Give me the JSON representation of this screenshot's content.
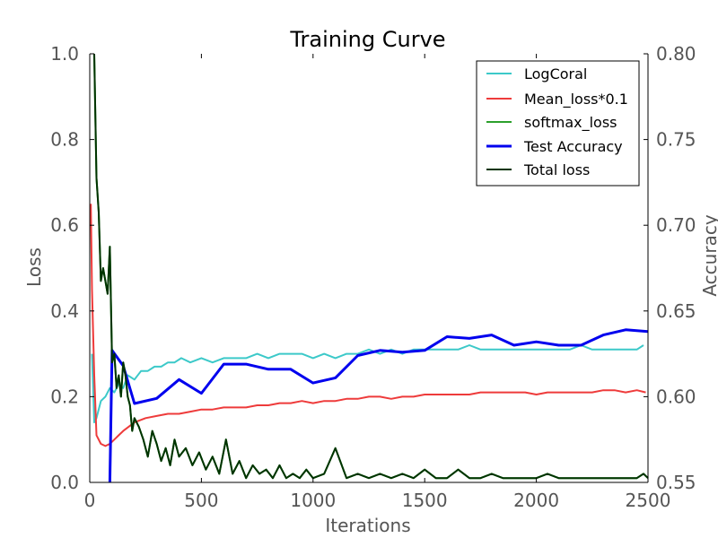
{
  "chart_data": {
    "type": "line",
    "title": "Training Curve",
    "xlabel": "Iterations",
    "ylabel": "Loss",
    "y2label": "Accuracy",
    "xlim": [
      0,
      2500
    ],
    "ylim": [
      0.0,
      1.0
    ],
    "y2lim": [
      0.55,
      0.8
    ],
    "xticks": [
      "0",
      "500",
      "1000",
      "1500",
      "2000",
      "2500"
    ],
    "yticks": [
      "0.0",
      "0.2",
      "0.4",
      "0.6",
      "0.8",
      "1.0"
    ],
    "y2ticks": [
      "0.55",
      "0.60",
      "0.65",
      "0.70",
      "0.75",
      "0.80"
    ],
    "grid": false,
    "legend_position": "top-right",
    "series": [
      {
        "name": "LogCoral",
        "axis": "left",
        "color": "#3cc9c9",
        "width": 2,
        "x": [
          10,
          20,
          30,
          50,
          70,
          90,
          110,
          130,
          150,
          170,
          200,
          230,
          260,
          290,
          320,
          350,
          380,
          410,
          450,
          500,
          550,
          600,
          650,
          700,
          750,
          800,
          850,
          900,
          950,
          1000,
          1050,
          1100,
          1150,
          1200,
          1250,
          1300,
          1350,
          1400,
          1450,
          1500,
          1550,
          1600,
          1650,
          1700,
          1750,
          1800,
          1850,
          1900,
          1950,
          2000,
          2050,
          2100,
          2150,
          2200,
          2250,
          2300,
          2350,
          2400,
          2450,
          2480
        ],
        "values": [
          0.3,
          0.14,
          0.15,
          0.19,
          0.2,
          0.22,
          0.21,
          0.23,
          0.22,
          0.25,
          0.24,
          0.26,
          0.26,
          0.27,
          0.27,
          0.28,
          0.28,
          0.29,
          0.28,
          0.29,
          0.28,
          0.29,
          0.29,
          0.29,
          0.3,
          0.29,
          0.3,
          0.3,
          0.3,
          0.29,
          0.3,
          0.29,
          0.3,
          0.3,
          0.31,
          0.3,
          0.31,
          0.3,
          0.31,
          0.31,
          0.31,
          0.31,
          0.31,
          0.32,
          0.31,
          0.31,
          0.31,
          0.31,
          0.31,
          0.31,
          0.31,
          0.31,
          0.31,
          0.32,
          0.31,
          0.31,
          0.31,
          0.31,
          0.31,
          0.32
        ]
      },
      {
        "name": "Mean_loss*0.1",
        "axis": "left",
        "color": "#ee3b3b",
        "width": 2,
        "x": [
          5,
          10,
          20,
          30,
          50,
          70,
          90,
          110,
          130,
          150,
          200,
          250,
          300,
          350,
          400,
          450,
          500,
          550,
          600,
          650,
          700,
          750,
          800,
          850,
          900,
          950,
          1000,
          1050,
          1100,
          1150,
          1200,
          1250,
          1300,
          1350,
          1400,
          1450,
          1500,
          1550,
          1600,
          1650,
          1700,
          1750,
          1800,
          1850,
          1900,
          1950,
          2000,
          2050,
          2100,
          2150,
          2200,
          2250,
          2300,
          2350,
          2400,
          2450,
          2490
        ],
        "values": [
          0.65,
          0.45,
          0.25,
          0.11,
          0.09,
          0.085,
          0.09,
          0.1,
          0.11,
          0.12,
          0.14,
          0.15,
          0.155,
          0.16,
          0.16,
          0.165,
          0.17,
          0.17,
          0.175,
          0.175,
          0.175,
          0.18,
          0.18,
          0.185,
          0.185,
          0.19,
          0.185,
          0.19,
          0.19,
          0.195,
          0.195,
          0.2,
          0.2,
          0.195,
          0.2,
          0.2,
          0.205,
          0.205,
          0.205,
          0.205,
          0.205,
          0.21,
          0.21,
          0.21,
          0.21,
          0.21,
          0.205,
          0.21,
          0.21,
          0.21,
          0.21,
          0.21,
          0.215,
          0.215,
          0.21,
          0.215,
          0.21
        ]
      },
      {
        "name": "softmax_loss",
        "axis": "left",
        "color": "#2ca02c",
        "width": 2,
        "x": [
          20,
          30,
          40,
          50,
          60,
          70,
          80,
          90,
          100,
          110,
          120,
          130,
          140,
          150,
          160,
          170,
          180,
          190,
          200,
          220,
          240,
          260,
          280,
          300,
          320,
          340,
          360,
          380,
          400,
          430,
          460,
          490,
          520,
          550,
          580,
          610,
          640,
          670,
          700,
          730,
          760,
          790,
          820,
          850,
          880,
          910,
          940,
          970,
          1000,
          1050,
          1100,
          1150,
          1200,
          1250,
          1300,
          1350,
          1400,
          1450,
          1500,
          1550,
          1600,
          1650,
          1700,
          1750,
          1800,
          1850,
          1900,
          1950,
          2000,
          2050,
          2100,
          2150,
          2200,
          2250,
          2300,
          2350,
          2400,
          2450,
          2480,
          2500
        ],
        "values": [
          1.0,
          0.71,
          0.63,
          0.47,
          0.5,
          0.47,
          0.44,
          0.55,
          0.28,
          0.3,
          0.22,
          0.25,
          0.2,
          0.28,
          0.25,
          0.2,
          0.18,
          0.12,
          0.15,
          0.13,
          0.1,
          0.06,
          0.12,
          0.09,
          0.05,
          0.08,
          0.04,
          0.1,
          0.06,
          0.08,
          0.04,
          0.07,
          0.03,
          0.06,
          0.02,
          0.1,
          0.02,
          0.05,
          0.01,
          0.04,
          0.02,
          0.03,
          0.01,
          0.04,
          0.01,
          0.02,
          0.01,
          0.03,
          0.01,
          0.02,
          0.08,
          0.01,
          0.02,
          0.01,
          0.02,
          0.01,
          0.02,
          0.01,
          0.03,
          0.01,
          0.01,
          0.03,
          0.01,
          0.01,
          0.02,
          0.01,
          0.01,
          0.01,
          0.01,
          0.02,
          0.01,
          0.01,
          0.01,
          0.01,
          0.01,
          0.01,
          0.01,
          0.01,
          0.02,
          0.01
        ]
      },
      {
        "name": "Test Accuracy",
        "axis": "right",
        "color": "#0000ee",
        "width": 3,
        "x": [
          90,
          100,
          150,
          200,
          300,
          400,
          500,
          600,
          700,
          800,
          900,
          1000,
          1100,
          1200,
          1300,
          1400,
          1500,
          1600,
          1700,
          1800,
          1900,
          2000,
          2100,
          2200,
          2300,
          2400,
          2500
        ],
        "values": [
          0.55,
          0.627,
          0.618,
          0.596,
          0.599,
          0.61,
          0.602,
          0.619,
          0.619,
          0.616,
          0.616,
          0.608,
          0.611,
          0.624,
          0.627,
          0.626,
          0.627,
          0.635,
          0.634,
          0.636,
          0.63,
          0.632,
          0.63,
          0.63,
          0.636,
          0.639,
          0.638
        ]
      },
      {
        "name": "Total loss",
        "axis": "left",
        "color": "#003300",
        "width": 2,
        "x": [
          20,
          30,
          40,
          50,
          60,
          70,
          80,
          90,
          100,
          110,
          120,
          130,
          140,
          150,
          160,
          170,
          180,
          190,
          200,
          220,
          240,
          260,
          280,
          300,
          320,
          340,
          360,
          380,
          400,
          430,
          460,
          490,
          520,
          550,
          580,
          610,
          640,
          670,
          700,
          730,
          760,
          790,
          820,
          850,
          880,
          910,
          940,
          970,
          1000,
          1050,
          1100,
          1150,
          1200,
          1250,
          1300,
          1350,
          1400,
          1450,
          1500,
          1550,
          1600,
          1650,
          1700,
          1750,
          1800,
          1850,
          1900,
          1950,
          2000,
          2050,
          2100,
          2150,
          2200,
          2250,
          2300,
          2350,
          2400,
          2450,
          2480,
          2500
        ],
        "values": [
          1.0,
          0.71,
          0.63,
          0.47,
          0.5,
          0.47,
          0.44,
          0.55,
          0.28,
          0.3,
          0.22,
          0.25,
          0.2,
          0.28,
          0.25,
          0.2,
          0.18,
          0.12,
          0.15,
          0.13,
          0.1,
          0.06,
          0.12,
          0.09,
          0.05,
          0.08,
          0.04,
          0.1,
          0.06,
          0.08,
          0.04,
          0.07,
          0.03,
          0.06,
          0.02,
          0.1,
          0.02,
          0.05,
          0.01,
          0.04,
          0.02,
          0.03,
          0.01,
          0.04,
          0.01,
          0.02,
          0.01,
          0.03,
          0.01,
          0.02,
          0.08,
          0.01,
          0.02,
          0.01,
          0.02,
          0.01,
          0.02,
          0.01,
          0.03,
          0.01,
          0.01,
          0.03,
          0.01,
          0.01,
          0.02,
          0.01,
          0.01,
          0.01,
          0.01,
          0.02,
          0.01,
          0.01,
          0.01,
          0.01,
          0.01,
          0.01,
          0.01,
          0.01,
          0.02,
          0.01
        ]
      }
    ]
  }
}
